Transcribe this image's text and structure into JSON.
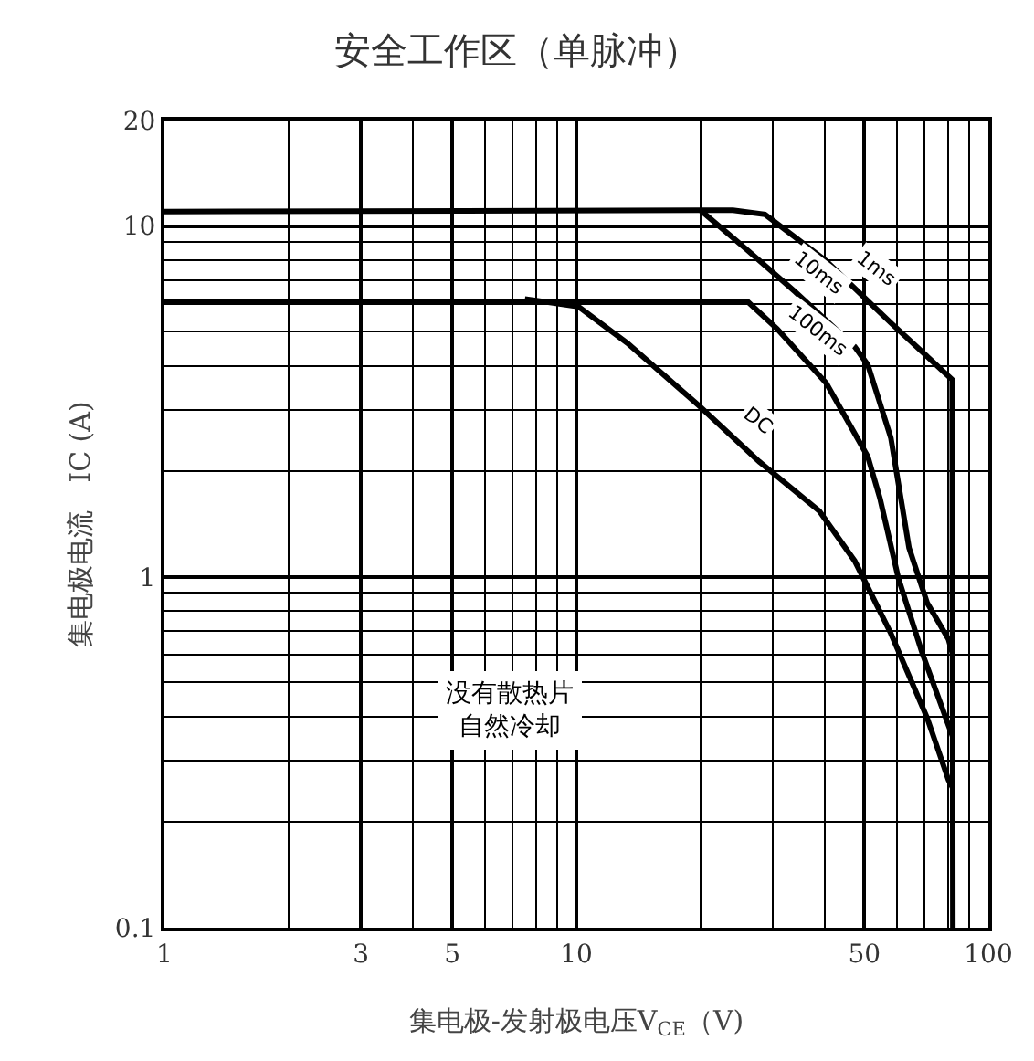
{
  "chart_data": {
    "type": "line",
    "title": "安全工作区（单脉冲）",
    "xlabel": "集电极-发射极电压V$_{CE}$（V)",
    "ylabel": "集电极电流　IC (A)",
    "log": "xy",
    "grid": true,
    "marker": "none",
    "line_style": "solid",
    "xlim": [
      1,
      100
    ],
    "xticks": [
      1,
      3,
      5,
      10,
      50,
      100
    ],
    "ylim": [
      0.1,
      20
    ],
    "yticks": [
      0.1,
      1,
      10,
      20
    ],
    "series": [
      {
        "color": "#000000",
        "x": [
          1,
          24,
          28.7,
          40.4,
          58,
          81.7,
          82
        ],
        "values": [
          11,
          11.1,
          10.8,
          7.96,
          5.3,
          3.65,
          0.1
        ]
      },
      {
        "color": "#000000",
        "x": [
          20,
          25.9,
          34,
          47.4,
          51,
          58,
          64.2,
          71,
          80,
          82
        ],
        "values": [
          11.1,
          8.58,
          6.49,
          4.53,
          4.02,
          2.49,
          1.21,
          0.845,
          0.665,
          0.6
        ]
      },
      {
        "color": "#000000",
        "x": [
          1,
          26,
          30.7,
          40.4,
          51,
          54.6,
          60.5,
          69,
          80,
          82
        ],
        "values": [
          6.1,
          6.1,
          5.1,
          3.57,
          2.2,
          1.67,
          0.99,
          0.61,
          0.378,
          0.35
        ]
      },
      {
        "color": "#000000",
        "x": [
          7.5,
          10.1,
          13.3,
          20,
          27.8,
          38.9,
          47.4,
          58,
          71,
          80,
          82
        ],
        "values": [
          6.2,
          5.9,
          4.64,
          3.05,
          2.13,
          1.54,
          1.11,
          0.69,
          0.397,
          0.264,
          0.25
        ]
      }
    ],
    "annotations": [
      {
        "text": "1ms",
        "x": 48.6,
        "y": 6.47
      },
      {
        "text": "10ms",
        "x": 35,
        "y": 6.3
      },
      {
        "text": "100ms",
        "x": 35,
        "y": 4.3
      },
      {
        "text": "DC",
        "x": 25,
        "y": 2.39
      },
      "没有散热片自然冷却"
    ]
  }
}
